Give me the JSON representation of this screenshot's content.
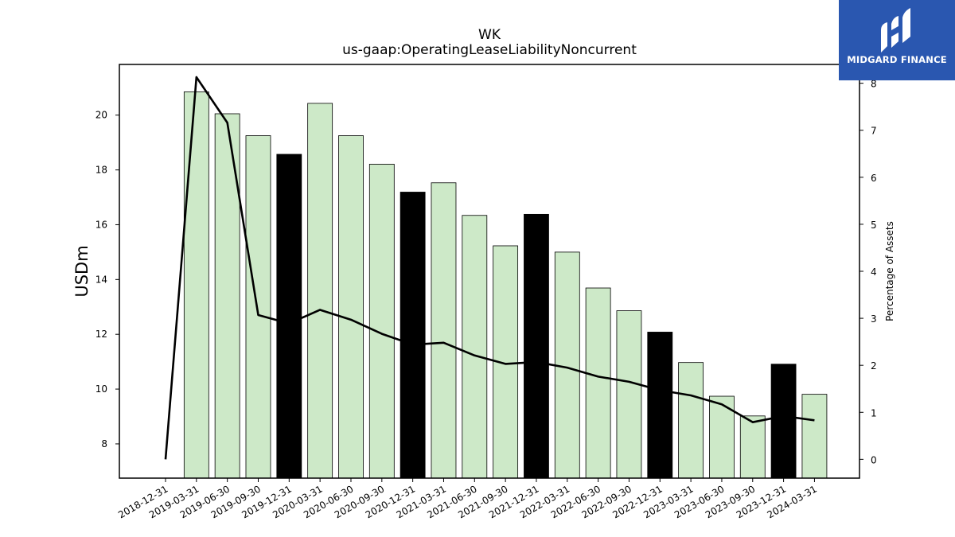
{
  "chart_data": {
    "type": "bar",
    "title": "WK",
    "subtitle": "us-gaap:OperatingLeaseLiabilityNoncurrent",
    "ylabel": "USDm",
    "y2label": "Percentage of Assets",
    "categories": [
      "2018-12-31",
      "2019-03-31",
      "2019-06-30",
      "2019-09-30",
      "2019-12-31",
      "2020-03-31",
      "2020-06-30",
      "2020-09-30",
      "2020-12-31",
      "2021-03-31",
      "2021-06-30",
      "2021-09-30",
      "2021-12-31",
      "2022-03-31",
      "2022-06-30",
      "2022-09-30",
      "2022-12-31",
      "2023-03-31",
      "2023-06-30",
      "2023-09-30",
      "2023-12-31",
      "2024-03-31"
    ],
    "series": [
      {
        "type": "bar",
        "values": [
          null,
          20.85,
          20.05,
          19.25,
          18.57,
          20.43,
          19.25,
          18.21,
          17.19,
          17.53,
          16.34,
          15.23,
          16.38,
          15.0,
          13.69,
          12.86,
          12.08,
          10.97,
          9.74,
          9.02,
          10.91,
          9.81
        ],
        "highlighted": [
          false,
          false,
          false,
          false,
          true,
          false,
          false,
          false,
          true,
          false,
          false,
          false,
          true,
          false,
          false,
          false,
          true,
          false,
          false,
          false,
          true,
          false
        ]
      },
      {
        "type": "line",
        "axis": "right",
        "values": [
          0.0,
          8.13,
          7.16,
          3.07,
          2.89,
          3.18,
          2.97,
          2.67,
          2.44,
          2.48,
          2.21,
          2.03,
          2.07,
          1.95,
          1.76,
          1.65,
          1.47,
          1.36,
          1.17,
          0.79,
          0.92,
          0.83
        ]
      }
    ],
    "ylim": [
      6.75,
      21.85
    ],
    "yticks": [
      8,
      10,
      12,
      14,
      16,
      18,
      20
    ],
    "y2lim": [
      -0.4,
      8.4
    ],
    "y2ticks": [
      0,
      1,
      2,
      3,
      4,
      5,
      6,
      7,
      8
    ],
    "colors": {
      "bar": "#cde9c8",
      "bar_highlight": "#000000",
      "line": "#000000",
      "edge": "#000000"
    },
    "grid": false
  },
  "logo": {
    "text": "MIDGARD FINANCE",
    "icon": "midgard-logo-icon",
    "bg_color": "#2a57b0"
  }
}
